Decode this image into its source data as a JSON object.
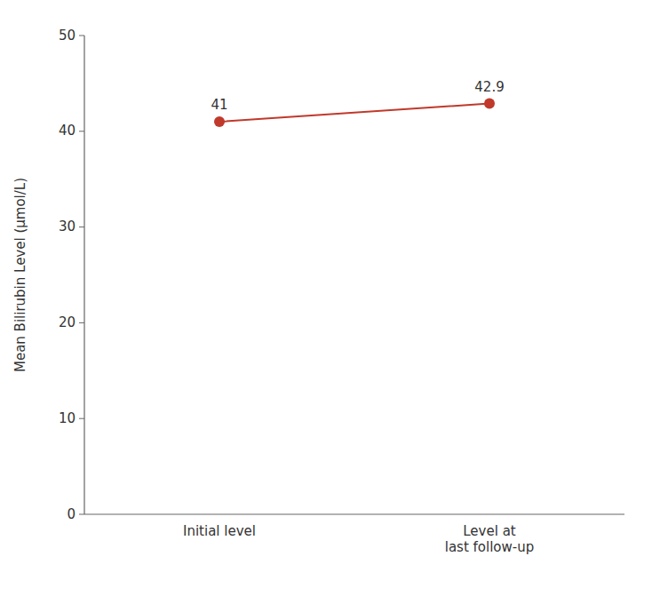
{
  "chart_data": {
    "type": "line",
    "y_label": "Mean Bilirubin Level (μmol/L)",
    "categories": [
      "Initial level",
      "Level at\nlast follow-up"
    ],
    "values": [
      41,
      42.9
    ],
    "color": "#c0392b",
    "marker": "circle",
    "ylim": [
      0,
      50
    ],
    "yticks": [
      0,
      10,
      20,
      30,
      40,
      50
    ],
    "data_labels": true,
    "grid": false
  }
}
